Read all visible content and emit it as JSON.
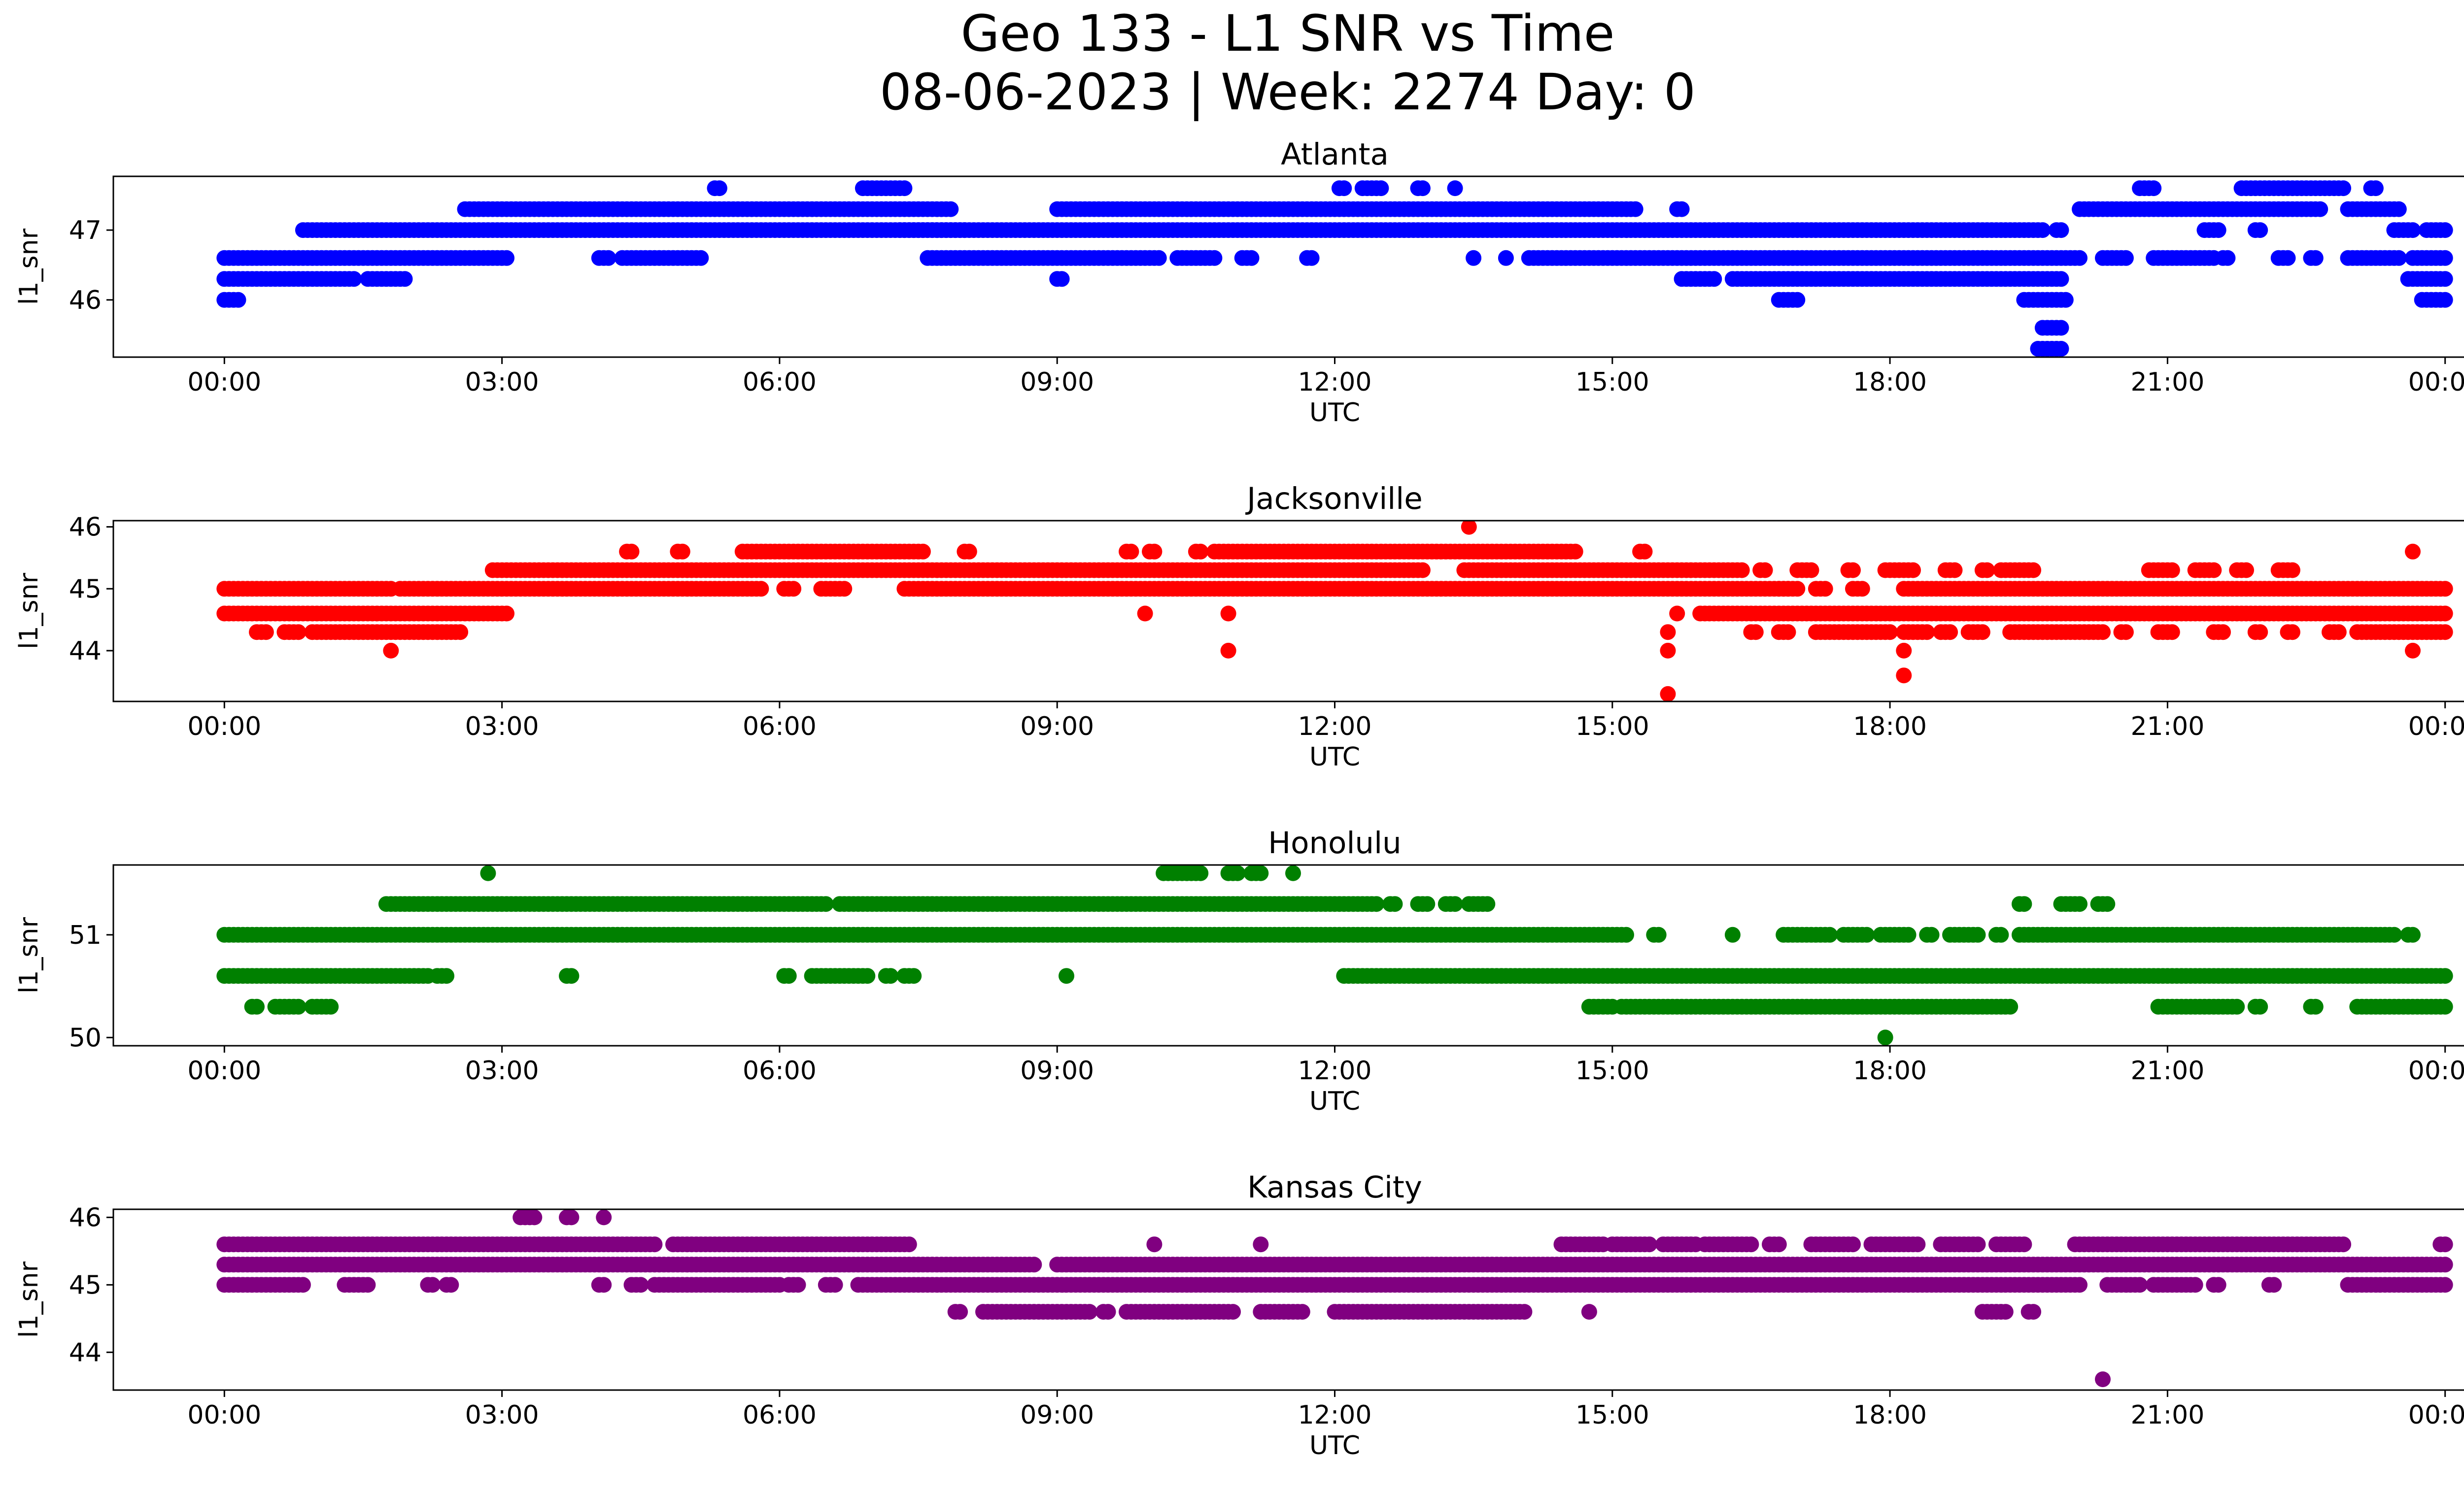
{
  "figure": {
    "title_line1": "Geo 133 - L1 SNR vs Time",
    "title_line2": "08-06-2023 | Week: 2274 Day: 0"
  },
  "chart_data": [
    {
      "type": "scatter",
      "title": "Atlanta",
      "xlabel": "UTC",
      "ylabel": "l1_snr",
      "color": "#0000ff",
      "xlim_hours": [
        -1.2,
        25.2
      ],
      "ylim": [
        45.18,
        47.77
      ],
      "x_ticks": [
        "00:00",
        "03:00",
        "06:00",
        "09:00",
        "12:00",
        "15:00",
        "18:00",
        "21:00",
        "00:00"
      ],
      "y_ticks": [
        46,
        47
      ],
      "points": [
        {
          "band": 46.0,
          "runs": [
            [
              0.0,
              0.15
            ],
            [
              16.8,
              17.0
            ],
            [
              19.45,
              19.9
            ],
            [
              23.75,
              24.0
            ]
          ]
        },
        {
          "band": 46.3,
          "runs": [
            [
              0.0,
              1.4
            ],
            [
              1.55,
              1.95
            ],
            [
              9.0,
              9.05
            ],
            [
              15.75,
              16.1
            ],
            [
              16.3,
              19.85
            ],
            [
              23.6,
              24.0
            ]
          ]
        },
        {
          "band": 46.6,
          "runs": [
            [
              0.0,
              3.05
            ],
            [
              4.05,
              4.15
            ],
            [
              4.3,
              5.15
            ],
            [
              7.6,
              10.1
            ],
            [
              10.3,
              10.7
            ],
            [
              11.0,
              11.1
            ],
            [
              11.7,
              11.75
            ],
            [
              13.5,
              13.5
            ],
            [
              13.85,
              13.85
            ],
            [
              14.1,
              20.05
            ],
            [
              20.3,
              20.55
            ],
            [
              20.85,
              21.5
            ],
            [
              21.6,
              21.65
            ],
            [
              22.2,
              22.3
            ],
            [
              22.55,
              22.6
            ],
            [
              22.95,
              23.5
            ],
            [
              23.65,
              24.0
            ]
          ]
        },
        {
          "band": 47.0,
          "runs": [
            [
              0.85,
              8.0
            ],
            [
              7.3,
              19.65
            ],
            [
              19.8,
              19.85
            ],
            [
              21.4,
              21.55
            ],
            [
              21.95,
              22.0
            ],
            [
              23.45,
              23.65
            ],
            [
              23.8,
              24.0
            ]
          ]
        },
        {
          "band": 47.3,
          "runs": [
            [
              2.6,
              7.85
            ],
            [
              9.0,
              15.25
            ],
            [
              15.7,
              15.75
            ],
            [
              20.05,
              22.65
            ],
            [
              22.95,
              23.5
            ]
          ]
        },
        {
          "band": 47.6,
          "runs": [
            [
              5.3,
              5.35
            ],
            [
              6.9,
              7.35
            ],
            [
              12.05,
              12.1
            ],
            [
              12.3,
              12.5
            ],
            [
              12.9,
              12.95
            ],
            [
              13.3,
              13.3
            ],
            [
              20.7,
              20.85
            ],
            [
              21.8,
              22.9
            ],
            [
              23.2,
              23.25
            ]
          ]
        },
        {
          "band": 45.6,
          "runs": [
            [
              19.65,
              19.85
            ]
          ]
        },
        {
          "band": 45.3,
          "runs": [
            [
              19.6,
              19.85
            ]
          ]
        }
      ]
    },
    {
      "type": "scatter",
      "title": "Jacksonville",
      "xlabel": "UTC",
      "ylabel": "l1_snr",
      "color": "#ff0000",
      "xlim_hours": [
        -1.2,
        25.2
      ],
      "ylim": [
        43.18,
        46.1
      ],
      "x_ticks": [
        "00:00",
        "03:00",
        "06:00",
        "09:00",
        "12:00",
        "15:00",
        "18:00",
        "21:00",
        "00:00"
      ],
      "y_ticks": [
        44,
        45,
        46
      ],
      "points": [
        {
          "band": 44.0,
          "runs": [
            [
              1.8,
              1.8
            ],
            [
              10.85,
              10.85
            ],
            [
              15.6,
              15.6
            ],
            [
              18.15,
              18.15
            ],
            [
              23.65,
              23.65
            ]
          ]
        },
        {
          "band": 44.3,
          "runs": [
            [
              0.35,
              0.45
            ],
            [
              0.65,
              0.8
            ],
            [
              0.95,
              2.55
            ],
            [
              15.6,
              15.6
            ],
            [
              16.5,
              16.55
            ],
            [
              16.8,
              16.9
            ],
            [
              17.2,
              18.0
            ],
            [
              18.15,
              18.4
            ],
            [
              18.55,
              18.65
            ],
            [
              18.85,
              19.0
            ],
            [
              19.3,
              20.3
            ],
            [
              20.5,
              20.55
            ],
            [
              20.9,
              21.05
            ],
            [
              21.5,
              21.6
            ],
            [
              21.95,
              22.0
            ],
            [
              22.3,
              22.35
            ],
            [
              22.75,
              22.85
            ],
            [
              23.05,
              24.0
            ]
          ]
        },
        {
          "band": 44.6,
          "runs": [
            [
              0.0,
              3.05
            ],
            [
              9.95,
              9.95
            ],
            [
              10.85,
              10.85
            ],
            [
              15.7,
              15.7
            ],
            [
              15.95,
              24.0
            ]
          ]
        },
        {
          "band": 45.0,
          "runs": [
            [
              0.0,
              1.8
            ],
            [
              1.9,
              5.8
            ],
            [
              6.05,
              6.15
            ],
            [
              6.45,
              6.7
            ],
            [
              7.35,
              17.0
            ],
            [
              16.8,
              16.9
            ],
            [
              17.2,
              17.3
            ],
            [
              17.6,
              17.7
            ],
            [
              18.15,
              24.0
            ]
          ]
        },
        {
          "band": 45.3,
          "runs": [
            [
              2.9,
              12.95
            ],
            [
              13.4,
              16.4
            ],
            [
              16.6,
              16.65
            ],
            [
              17.0,
              17.15
            ],
            [
              17.55,
              17.6
            ],
            [
              17.95,
              18.25
            ],
            [
              18.6,
              18.7
            ],
            [
              19.0,
              19.05
            ],
            [
              19.2,
              19.55
            ],
            [
              20.8,
              21.05
            ],
            [
              21.3,
              21.5
            ],
            [
              21.75,
              21.85
            ],
            [
              22.2,
              22.35
            ]
          ]
        },
        {
          "band": 45.6,
          "runs": [
            [
              4.35,
              4.4
            ],
            [
              4.9,
              4.95
            ],
            [
              5.6,
              7.55
            ],
            [
              8.0,
              8.05
            ],
            [
              9.75,
              9.8
            ],
            [
              10.0,
              10.05
            ],
            [
              10.5,
              10.55
            ],
            [
              10.7,
              14.6
            ],
            [
              15.3,
              15.35
            ],
            [
              23.65,
              23.65
            ]
          ]
        },
        {
          "band": 46.0,
          "runs": [
            [
              13.45,
              13.45
            ]
          ]
        },
        {
          "band": 43.6,
          "runs": [
            [
              18.15,
              18.15
            ]
          ]
        },
        {
          "band": 43.3,
          "runs": [
            [
              15.6,
              15.6
            ]
          ]
        }
      ]
    },
    {
      "type": "scatter",
      "title": "Honolulu",
      "xlabel": "UTC",
      "ylabel": "l1_snr",
      "color": "#008000",
      "xlim_hours": [
        -1.2,
        25.2
      ],
      "ylim": [
        49.92,
        51.68
      ],
      "x_ticks": [
        "00:00",
        "03:00",
        "06:00",
        "09:00",
        "12:00",
        "15:00",
        "18:00",
        "21:00",
        "00:00"
      ],
      "y_ticks": [
        50,
        51
      ],
      "points": [
        {
          "band": 50.0,
          "runs": [
            [
              17.95,
              17.95
            ]
          ]
        },
        {
          "band": 50.3,
          "runs": [
            [
              0.3,
              0.35
            ],
            [
              0.55,
              0.8
            ],
            [
              0.95,
              1.15
            ],
            [
              14.75,
              15.0
            ],
            [
              15.1,
              19.3
            ],
            [
              20.9,
              21.75
            ],
            [
              21.95,
              22.0
            ],
            [
              22.55,
              22.6
            ],
            [
              23.05,
              24.0
            ]
          ]
        },
        {
          "band": 50.6,
          "runs": [
            [
              0.0,
              2.2
            ],
            [
              2.3,
              2.4
            ],
            [
              3.7,
              3.75
            ],
            [
              6.05,
              6.1
            ],
            [
              6.35,
              6.95
            ],
            [
              7.15,
              7.2
            ],
            [
              7.35,
              7.45
            ],
            [
              9.1,
              9.1
            ],
            [
              12.1,
              12.25
            ],
            [
              12.3,
              24.0
            ]
          ]
        },
        {
          "band": 51.0,
          "runs": [
            [
              0.0,
              0.8
            ],
            [
              0.85,
              15.15
            ],
            [
              15.45,
              15.5
            ],
            [
              16.3,
              16.3
            ],
            [
              16.85,
              17.35
            ],
            [
              17.5,
              17.75
            ],
            [
              17.9,
              18.2
            ],
            [
              18.4,
              18.45
            ],
            [
              18.65,
              18.95
            ],
            [
              19.15,
              19.2
            ],
            [
              19.4,
              23.45
            ],
            [
              23.6,
              23.65
            ]
          ]
        },
        {
          "band": 51.3,
          "runs": [
            [
              1.75,
              6.5
            ],
            [
              6.65,
              12.45
            ],
            [
              12.6,
              12.65
            ],
            [
              12.9,
              13.0
            ],
            [
              13.2,
              13.3
            ],
            [
              13.45,
              13.65
            ],
            [
              19.4,
              19.45
            ],
            [
              19.85,
              20.05
            ],
            [
              20.25,
              20.35
            ]
          ]
        },
        {
          "band": 51.6,
          "runs": [
            [
              2.85,
              2.85
            ],
            [
              10.15,
              10.55
            ],
            [
              10.85,
              10.95
            ],
            [
              11.1,
              11.2
            ],
            [
              11.55,
              11.55
            ]
          ]
        }
      ]
    },
    {
      "type": "scatter",
      "title": "Kansas City",
      "xlabel": "UTC",
      "ylabel": "l1_snr",
      "color": "#800080",
      "xlim_hours": [
        -1.2,
        25.2
      ],
      "ylim": [
        43.44,
        46.12
      ],
      "x_ticks": [
        "00:00",
        "03:00",
        "06:00",
        "09:00",
        "12:00",
        "15:00",
        "18:00",
        "21:00",
        "00:00"
      ],
      "y_ticks": [
        44,
        45,
        46
      ],
      "points": [
        {
          "band": 43.6,
          "runs": [
            [
              20.3,
              20.3
            ]
          ]
        },
        {
          "band": 44.6,
          "runs": [
            [
              7.9,
              7.95
            ],
            [
              8.2,
              9.35
            ],
            [
              9.5,
              9.55
            ],
            [
              9.75,
              10.9
            ],
            [
              11.2,
              11.65
            ],
            [
              12.0,
              14.05
            ],
            [
              14.75,
              14.75
            ],
            [
              19.0,
              19.25
            ],
            [
              19.5,
              19.55
            ]
          ]
        },
        {
          "band": 45.0,
          "runs": [
            [
              0.0,
              0.85
            ],
            [
              1.3,
              1.55
            ],
            [
              2.2,
              2.25
            ],
            [
              2.4,
              2.45
            ],
            [
              4.05,
              4.1
            ],
            [
              4.4,
              4.5
            ],
            [
              4.65,
              5.3
            ],
            [
              5.35,
              6.0
            ],
            [
              6.1,
              6.2
            ],
            [
              6.5,
              6.6
            ],
            [
              6.85,
              20.05
            ],
            [
              20.35,
              20.7
            ],
            [
              20.85,
              21.3
            ],
            [
              21.5,
              21.55
            ],
            [
              22.1,
              22.15
            ],
            [
              22.95,
              24.0
            ]
          ]
        },
        {
          "band": 45.3,
          "runs": [
            [
              0.0,
              8.75
            ],
            [
              9.0,
              24.0
            ]
          ]
        },
        {
          "band": 45.6,
          "runs": [
            [
              0.0,
              4.65
            ],
            [
              4.85,
              7.4
            ],
            [
              10.05,
              10.05
            ],
            [
              11.2,
              11.2
            ],
            [
              14.45,
              14.9
            ],
            [
              15.0,
              15.4
            ],
            [
              15.55,
              15.9
            ],
            [
              16.0,
              16.5
            ],
            [
              16.7,
              16.8
            ],
            [
              17.15,
              17.6
            ],
            [
              17.8,
              18.3
            ],
            [
              18.55,
              18.95
            ],
            [
              19.15,
              19.45
            ],
            [
              20.0,
              20.5
            ],
            [
              20.55,
              22.9
            ],
            [
              23.95,
              24.0
            ]
          ]
        },
        {
          "band": 46.0,
          "runs": [
            [
              3.2,
              3.35
            ],
            [
              3.7,
              3.75
            ],
            [
              4.1,
              4.1
            ]
          ]
        }
      ]
    }
  ]
}
